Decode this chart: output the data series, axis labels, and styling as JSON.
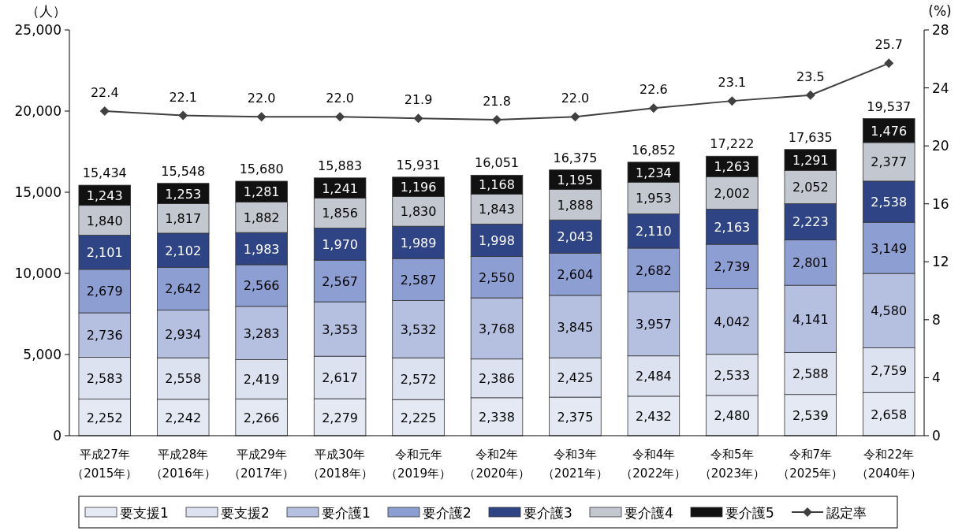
{
  "chart_data": {
    "type": "bar",
    "stacked": true,
    "ylabel": "（人）",
    "y2label": "(%)",
    "categories": [
      "平成27年（2015年）",
      "平成28年（2016年）",
      "平成29年（2017年）",
      "平成30年（2018年）",
      "令和元年（2019年）",
      "令和2年（2020年）",
      "令和3年（2021年）",
      "令和4年（2022年）",
      "令和5年（2023年）",
      "令和7年（2025年）",
      "令和22年（2040年）"
    ],
    "series": [
      {
        "name": "要支援1",
        "color": "#e4e9f4",
        "values": [
          2252,
          2242,
          2266,
          2279,
          2225,
          2338,
          2375,
          2432,
          2480,
          2539,
          2658
        ],
        "value_labels": [
          "2,252",
          "2,242",
          "2,266",
          "2,279",
          "2,225",
          "2,338",
          "2,375",
          "2,432",
          "2,480",
          "2,539",
          "2,658"
        ]
      },
      {
        "name": "要支援2",
        "color": "#dde2f1",
        "values": [
          2583,
          2558,
          2419,
          2617,
          2572,
          2386,
          2425,
          2484,
          2533,
          2588,
          2759
        ],
        "value_labels": [
          "2,583",
          "2,558",
          "2,419",
          "2,617",
          "2,572",
          "2,386",
          "2,425",
          "2,484",
          "2,533",
          "2,588",
          "2,759"
        ]
      },
      {
        "name": "要介護1",
        "color": "#b5bfe0",
        "values": [
          2736,
          2934,
          3283,
          3353,
          3532,
          3768,
          3845,
          3957,
          4042,
          4141,
          4580
        ],
        "value_labels": [
          "2,736",
          "2,934",
          "3,283",
          "3,353",
          "3,532",
          "3,768",
          "3,845",
          "3,957",
          "4,042",
          "4,141",
          "4,580"
        ]
      },
      {
        "name": "要介護2",
        "color": "#8d9ed2",
        "values": [
          2679,
          2642,
          2566,
          2567,
          2587,
          2550,
          2604,
          2682,
          2739,
          2801,
          3149
        ],
        "value_labels": [
          "2,679",
          "2,642",
          "2,566",
          "2,567",
          "2,587",
          "2,550",
          "2,604",
          "2,682",
          "2,739",
          "2,801",
          "3,149"
        ]
      },
      {
        "name": "要介護3",
        "color": "#2e4484",
        "values": [
          2101,
          2102,
          1983,
          1970,
          1989,
          1998,
          2043,
          2110,
          2163,
          2223,
          2538
        ],
        "value_labels": [
          "2,101",
          "2,102",
          "1,983",
          "1,970",
          "1,989",
          "1,998",
          "2,043",
          "2,110",
          "2,163",
          "2,223",
          "2,538"
        ]
      },
      {
        "name": "要介護4",
        "color": "#c3c7d0",
        "values": [
          1840,
          1817,
          1882,
          1856,
          1830,
          1843,
          1888,
          1953,
          2002,
          2052,
          2377
        ],
        "value_labels": [
          "1,840",
          "1,817",
          "1,882",
          "1,856",
          "1,830",
          "1,843",
          "1,888",
          "1,953",
          "2,002",
          "2,052",
          "2,377"
        ]
      },
      {
        "name": "要介護5",
        "color": "#111111",
        "values": [
          1243,
          1253,
          1281,
          1241,
          1196,
          1168,
          1195,
          1234,
          1263,
          1291,
          1476
        ],
        "value_labels": [
          "1,243",
          "1,253",
          "1,281",
          "1,241",
          "1,196",
          "1,168",
          "1,195",
          "1,234",
          "1,263",
          "1,291",
          "1,476"
        ]
      },
      {
        "name": "認定率",
        "type": "line",
        "axis": "y2",
        "color": "#404040",
        "marker": "diamond",
        "values": [
          22.4,
          22.1,
          22.0,
          22.0,
          21.9,
          21.8,
          22.0,
          22.6,
          23.1,
          23.5,
          25.7
        ],
        "value_labels": [
          "22.4",
          "22.1",
          "22.0",
          "22.0",
          "21.9",
          "21.8",
          "22.0",
          "22.6",
          "23.1",
          "23.5",
          "25.7"
        ]
      }
    ],
    "totals": [
      "15,434",
      "15,548",
      "15,680",
      "15,883",
      "15,931",
      "16,051",
      "16,375",
      "16,852",
      "17,222",
      "17,635",
      "19,537"
    ],
    "ylim": [
      0,
      25000
    ],
    "yticks": [
      0,
      {
        "value": 5000,
        "label": "5,000"
      },
      {
        "value": 10000,
        "label": "10,000"
      },
      {
        "value": 15000,
        "label": "15,000"
      },
      {
        "value": 20000,
        "label": "20,000"
      },
      {
        "value": 25000,
        "label": "25,000"
      }
    ],
    "y2lim": [
      0,
      28
    ],
    "y2ticks": [
      0,
      4,
      8,
      12,
      16,
      20,
      24,
      28
    ],
    "legend": "bottom",
    "grid": false
  }
}
